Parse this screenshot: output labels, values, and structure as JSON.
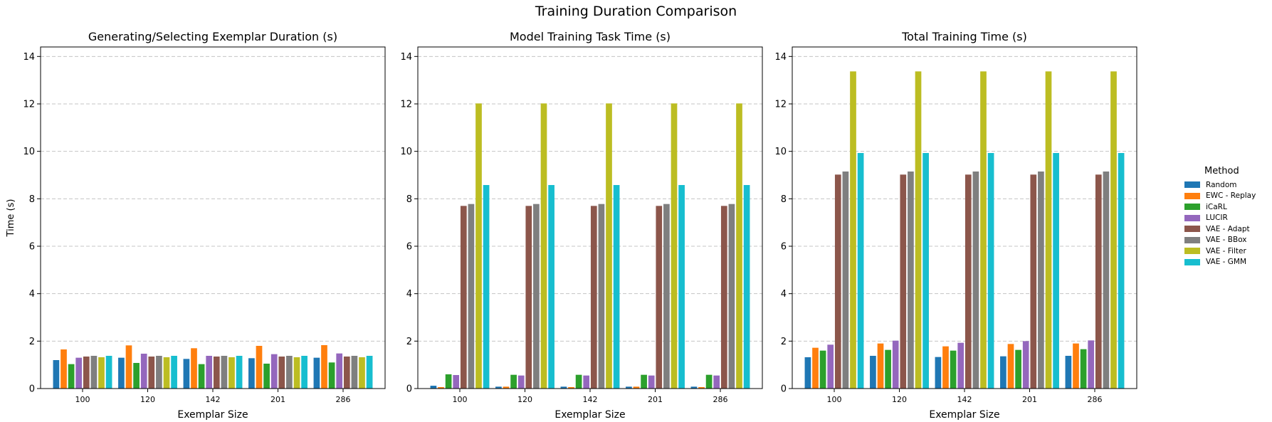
{
  "figure_title": "Training Duration Comparison",
  "legend": {
    "title": "Method",
    "items": [
      "Random",
      "EWC - Replay",
      "iCaRL",
      "LUCIR",
      "VAE - Adapt",
      "VAE - BBox",
      "VAE - Filter",
      "VAE - GMM"
    ]
  },
  "colors": [
    "#1f77b4",
    "#ff7f0e",
    "#2ca02c",
    "#9467bd",
    "#8c564b",
    "#7f7f7f",
    "#bcbd22",
    "#17becf"
  ],
  "chart_data": [
    {
      "type": "bar",
      "title": "Generating/Selecting Exemplar Duration (s)",
      "xlabel": "Exemplar Size",
      "ylabel": "Time (s)",
      "categories": [
        "100",
        "120",
        "142",
        "201",
        "286"
      ],
      "ylim": [
        0,
        14.4
      ],
      "yticks": [
        0,
        2,
        4,
        6,
        8,
        10,
        12,
        14
      ],
      "grid": "y-dashed",
      "series": [
        {
          "name": "Random",
          "values": [
            1.2,
            1.3,
            1.25,
            1.28,
            1.3
          ]
        },
        {
          "name": "EWC - Replay",
          "values": [
            1.65,
            1.82,
            1.7,
            1.8,
            1.83
          ]
        },
        {
          "name": "iCaRL",
          "values": [
            1.03,
            1.08,
            1.03,
            1.05,
            1.1
          ]
        },
        {
          "name": "LUCIR",
          "values": [
            1.3,
            1.47,
            1.38,
            1.45,
            1.48
          ]
        },
        {
          "name": "VAE - Adapt",
          "values": [
            1.35,
            1.35,
            1.35,
            1.35,
            1.35
          ]
        },
        {
          "name": "VAE - BBox",
          "values": [
            1.38,
            1.38,
            1.38,
            1.38,
            1.38
          ]
        },
        {
          "name": "VAE - Filter",
          "values": [
            1.32,
            1.32,
            1.32,
            1.32,
            1.32
          ]
        },
        {
          "name": "VAE - GMM",
          "values": [
            1.38,
            1.38,
            1.38,
            1.38,
            1.38
          ]
        }
      ]
    },
    {
      "type": "bar",
      "title": "Model Training Task Time (s)",
      "xlabel": "Exemplar Size",
      "ylabel": "",
      "categories": [
        "100",
        "120",
        "142",
        "201",
        "286"
      ],
      "ylim": [
        0,
        14.4
      ],
      "yticks": [
        0,
        2,
        4,
        6,
        8,
        10,
        12,
        14
      ],
      "grid": "y-dashed",
      "series": [
        {
          "name": "Random",
          "values": [
            0.12,
            0.08,
            0.08,
            0.08,
            0.08
          ]
        },
        {
          "name": "EWC - Replay",
          "values": [
            0.06,
            0.08,
            0.06,
            0.08,
            0.06
          ]
        },
        {
          "name": "iCaRL",
          "values": [
            0.6,
            0.58,
            0.58,
            0.58,
            0.58
          ]
        },
        {
          "name": "LUCIR",
          "values": [
            0.57,
            0.55,
            0.55,
            0.55,
            0.55
          ]
        },
        {
          "name": "VAE - Adapt",
          "values": [
            7.7,
            7.7,
            7.7,
            7.7,
            7.7
          ]
        },
        {
          "name": "VAE - BBox",
          "values": [
            7.78,
            7.78,
            7.78,
            7.78,
            7.78
          ]
        },
        {
          "name": "VAE - Filter",
          "values": [
            12.02,
            12.02,
            12.02,
            12.02,
            12.02
          ]
        },
        {
          "name": "VAE - GMM",
          "values": [
            8.58,
            8.58,
            8.58,
            8.58,
            8.58
          ]
        }
      ]
    },
    {
      "type": "bar",
      "title": "Total Training Time (s)",
      "xlabel": "Exemplar Size",
      "ylabel": "",
      "categories": [
        "100",
        "120",
        "142",
        "201",
        "286"
      ],
      "ylim": [
        0,
        14.4
      ],
      "yticks": [
        0,
        2,
        4,
        6,
        8,
        10,
        12,
        14
      ],
      "grid": "y-dashed",
      "series": [
        {
          "name": "Random",
          "values": [
            1.32,
            1.38,
            1.33,
            1.36,
            1.38
          ]
        },
        {
          "name": "EWC - Replay",
          "values": [
            1.72,
            1.9,
            1.78,
            1.88,
            1.9
          ]
        },
        {
          "name": "iCaRL",
          "values": [
            1.6,
            1.63,
            1.6,
            1.63,
            1.66
          ]
        },
        {
          "name": "LUCIR",
          "values": [
            1.85,
            2.02,
            1.93,
            2.0,
            2.03
          ]
        },
        {
          "name": "VAE - Adapt",
          "values": [
            9.02,
            9.02,
            9.02,
            9.02,
            9.02
          ]
        },
        {
          "name": "VAE - BBox",
          "values": [
            9.15,
            9.15,
            9.15,
            9.15,
            9.15
          ]
        },
        {
          "name": "VAE - Filter",
          "values": [
            13.37,
            13.37,
            13.37,
            13.37,
            13.37
          ]
        },
        {
          "name": "VAE - GMM",
          "values": [
            9.93,
            9.93,
            9.93,
            9.93,
            9.93
          ]
        }
      ]
    }
  ]
}
